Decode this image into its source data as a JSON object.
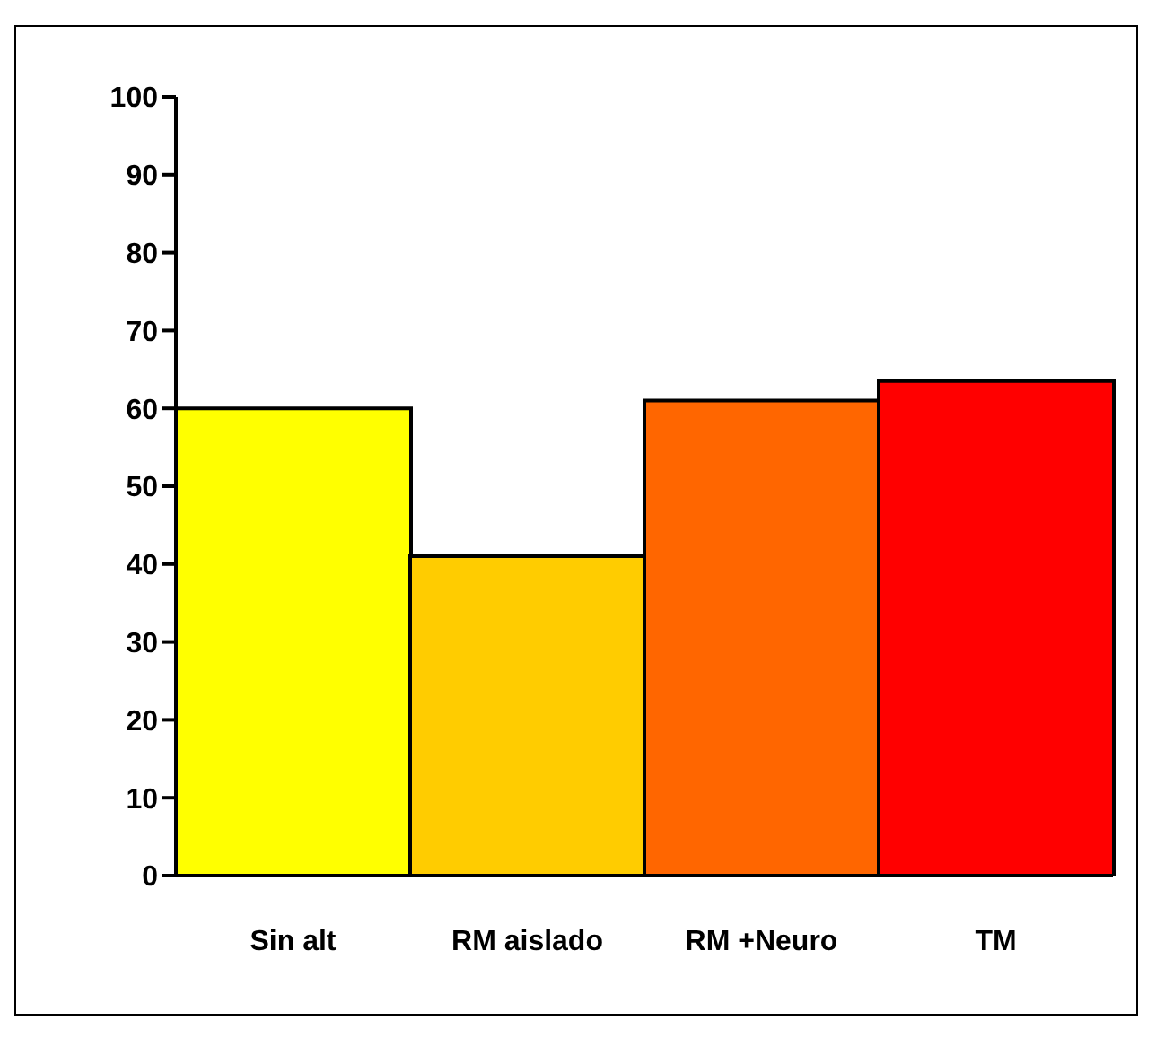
{
  "chart_data": {
    "type": "bar",
    "categories": [
      "Sin alt",
      "RM aislado",
      "RM +Neuro",
      "TM"
    ],
    "values": [
      60,
      41,
      61,
      63.5
    ],
    "colors": [
      "#ffff00",
      "#ffcc00",
      "#ff6600",
      "#ff0000"
    ],
    "ylim": [
      0,
      100
    ],
    "yticks": [
      0,
      10,
      20,
      30,
      40,
      50,
      60,
      70,
      80,
      90,
      100
    ],
    "grid": false
  }
}
